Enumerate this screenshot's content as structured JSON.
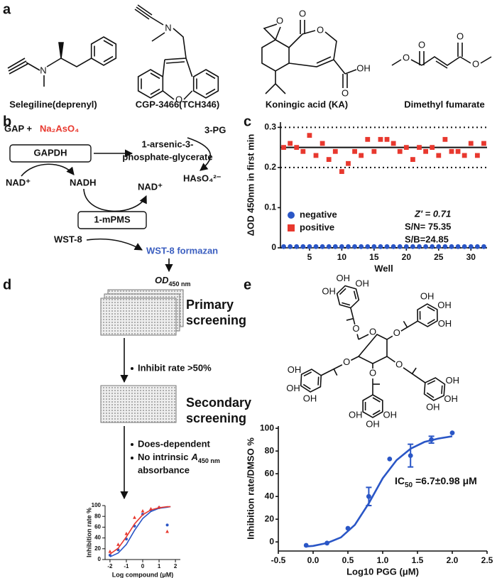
{
  "panel_labels": [
    "a",
    "b",
    "c",
    "d",
    "e"
  ],
  "panel_a": {
    "compounds": [
      {
        "name": "Selegiline(deprenyl)",
        "atoms": [
          "N"
        ]
      },
      {
        "name": "CGP-3466(TCH346)",
        "atoms": [
          "N",
          "O"
        ]
      },
      {
        "name": "Koningic acid (KA)",
        "atoms": [
          "O",
          "O",
          "O",
          "O",
          "OH"
        ]
      },
      {
        "name": "Dimethyl fumarate",
        "atoms": [
          "O",
          "O",
          "O",
          "O"
        ]
      }
    ]
  },
  "panel_b": {
    "substrate": "GAP +",
    "arsenate": "Na₂AsO₄",
    "enzyme": "GAPDH",
    "product": [
      "1-arsenic-3-",
      "phosphate-glycerate"
    ],
    "side_products": [
      "3-PG",
      "HAsO₄²⁻"
    ],
    "cofactors": [
      "NAD⁺",
      "NADH",
      "NAD⁺"
    ],
    "mediator": "1-mPMS",
    "dye": "WST-8",
    "dye_product": "WST-8 formazan",
    "readout": {
      "main": "OD",
      "sub": "450 nm"
    }
  },
  "panel_d": {
    "steps": [
      {
        "title": [
          "Primary",
          "screening"
        ],
        "criteria": [
          "Inhibit rate >50%"
        ]
      },
      {
        "title": [
          "Secondary",
          "screening"
        ],
        "criteria": [
          "Does-dependent",
          {
            "text": "No intrinsic",
            "italic": "A",
            "sub": "450 nm",
            "continuation": "absorbance"
          }
        ]
      }
    ]
  },
  "panel_e": {
    "structure_atoms": [
      "OH",
      "OH",
      "OH",
      "OH",
      "OH",
      "OH",
      "OH",
      "OH",
      "OH",
      "OH",
      "OH",
      "OH",
      "OH",
      "OH",
      "OH",
      "O",
      "O",
      "O",
      "O",
      "O",
      "O"
    ]
  },
  "chart_data": [
    {
      "type": "scatter",
      "xlabel": "Well",
      "ylabel": "ΔOD 450nm in first min",
      "x": [
        1,
        2,
        3,
        4,
        5,
        6,
        7,
        8,
        9,
        10,
        11,
        12,
        13,
        14,
        15,
        16,
        17,
        18,
        19,
        20,
        21,
        22,
        23,
        24,
        25,
        26,
        27,
        28,
        29,
        30,
        31,
        32
      ],
      "series": [
        {
          "name": "negative",
          "color": "#2a56c6",
          "marker": "circle",
          "values": [
            0.003,
            0.003,
            0.003,
            0.003,
            0.003,
            0.003,
            0.003,
            0.003,
            0.003,
            0.003,
            0.003,
            0.003,
            0.003,
            0.003,
            0.003,
            0.003,
            0.003,
            0.003,
            0.003,
            0.003,
            0.003,
            0.003,
            0.003,
            0.003,
            0.003,
            0.003,
            0.003,
            0.003,
            0.003,
            0.003,
            0.003,
            0.003
          ]
        },
        {
          "name": "positive",
          "color": "#e8382e",
          "marker": "square",
          "values": [
            0.25,
            0.26,
            0.25,
            0.24,
            0.28,
            0.23,
            0.26,
            0.22,
            0.24,
            0.19,
            0.21,
            0.24,
            0.23,
            0.27,
            0.24,
            0.27,
            0.27,
            0.26,
            0.24,
            0.25,
            0.22,
            0.25,
            0.24,
            0.25,
            0.23,
            0.27,
            0.24,
            0.24,
            0.23,
            0.26,
            0.23,
            0.26
          ]
        }
      ],
      "xlim": [
        0.5,
        32.5
      ],
      "ylim": [
        0,
        0.313
      ],
      "xticks": [
        5,
        10,
        15,
        20,
        25,
        30
      ],
      "yticks": [
        0,
        0.1,
        0.2,
        0.3
      ],
      "hlines": [
        {
          "value": 0.3,
          "style": "dotted"
        },
        {
          "value": 0.25,
          "style": "solid"
        },
        {
          "value": 0.2,
          "style": "dotted"
        },
        {
          "value": 0,
          "style": "dotted"
        }
      ],
      "annotations": [
        "Z′ = 0.71",
        "S/N= 75.35",
        "S/B=24.85"
      ]
    },
    {
      "type": "dose_response",
      "xlabel": "Log compound (μM)",
      "ylabel": "Inhibition rate %",
      "xlim": [
        -2.3,
        2.3
      ],
      "ylim": [
        0,
        100
      ],
      "xticks": [
        -2,
        -1,
        0,
        1,
        2
      ],
      "yticks": [
        0,
        20,
        40,
        60,
        80,
        100
      ],
      "series": [
        {
          "color": "#2a56c6",
          "marker": "circle",
          "x": [
            -2,
            -1.5,
            -1,
            -0.5,
            0,
            0.5,
            1,
            1.5
          ],
          "values": [
            8,
            18,
            38,
            62,
            84,
            92,
            96,
            64
          ],
          "fit_x": [
            -2,
            -1.5,
            -1,
            -0.5,
            0,
            0.5,
            1,
            1.5,
            1.7
          ],
          "fit": [
            5,
            12,
            28,
            54,
            76,
            89,
            95,
            97,
            98
          ]
        },
        {
          "color": "#e8382e",
          "marker": "triangle",
          "x": [
            -2,
            -1.5,
            -1,
            -0.5,
            0,
            0.5,
            1,
            1.5
          ],
          "values": [
            15,
            28,
            48,
            78,
            90,
            94,
            97,
            52
          ],
          "fit_x": [
            -2,
            -1.5,
            -1,
            -0.5,
            0,
            0.5,
            1,
            1.5,
            1.7
          ],
          "fit": [
            10,
            21,
            42,
            66,
            83,
            92,
            96,
            98,
            98
          ]
        }
      ]
    },
    {
      "type": "dose_response",
      "xlabel": "Log10 PGG (μM)",
      "ylabel": "Inhibition rate/DMSO %",
      "annotation": {
        "main": "IC",
        "sub": "50",
        "rest": "=6.7±0.98 μM"
      },
      "xlim": [
        -0.5,
        2.5
      ],
      "ylim": [
        -8,
        102
      ],
      "xticks": [
        -0.5,
        {
          "value": 0,
          "label": "0.0"
        },
        0.5,
        {
          "value": 1,
          "label": "1.0"
        },
        1.5,
        {
          "value": 2,
          "label": "2.0"
        },
        2.5
      ],
      "yticks": [
        0,
        20,
        40,
        60,
        80,
        100
      ],
      "series": [
        {
          "color": "#2a56c6",
          "marker": "circle",
          "x": [
            -0.1,
            0.2,
            0.5,
            0.8,
            1.1,
            1.4,
            1.7,
            2.0
          ],
          "values": [
            -3,
            -1,
            12,
            40,
            73,
            76,
            90,
            96
          ],
          "errors": [
            null,
            null,
            null,
            8,
            null,
            10,
            3,
            null
          ],
          "fit_x": [
            -0.1,
            0,
            0.2,
            0.4,
            0.6,
            0.8,
            1,
            1.2,
            1.4,
            1.6,
            1.8,
            2
          ],
          "fit": [
            -4,
            -3.5,
            -1,
            4,
            15,
            34,
            56,
            72,
            82,
            88,
            91,
            93
          ]
        }
      ]
    }
  ]
}
